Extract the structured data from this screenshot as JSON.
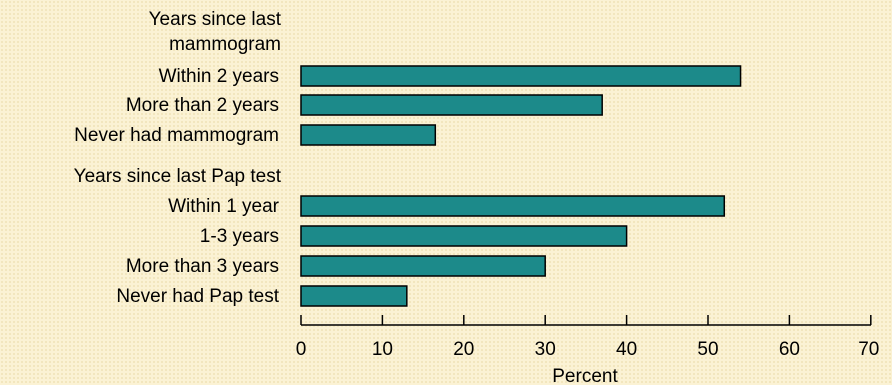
{
  "chart_data": {
    "type": "bar",
    "orientation": "horizontal",
    "xlabel": "Percent",
    "xlim": [
      0,
      70
    ],
    "xticks": [
      0,
      10,
      20,
      30,
      40,
      50,
      60,
      70
    ],
    "bar_color": "#1c8a8a",
    "grid": false,
    "groups": [
      {
        "heading": [
          "Years since last",
          "mammogram"
        ],
        "categories": [
          "Within 2 years",
          "More than 2 years",
          "Never had mammogram"
        ],
        "values": [
          54,
          37,
          16.5
        ]
      },
      {
        "heading": [
          "Years since last Pap test"
        ],
        "categories": [
          "Within 1 year",
          "1-3 years",
          "More than 3 years",
          "Never had Pap test"
        ],
        "values": [
          52,
          40,
          30,
          13
        ]
      }
    ]
  }
}
